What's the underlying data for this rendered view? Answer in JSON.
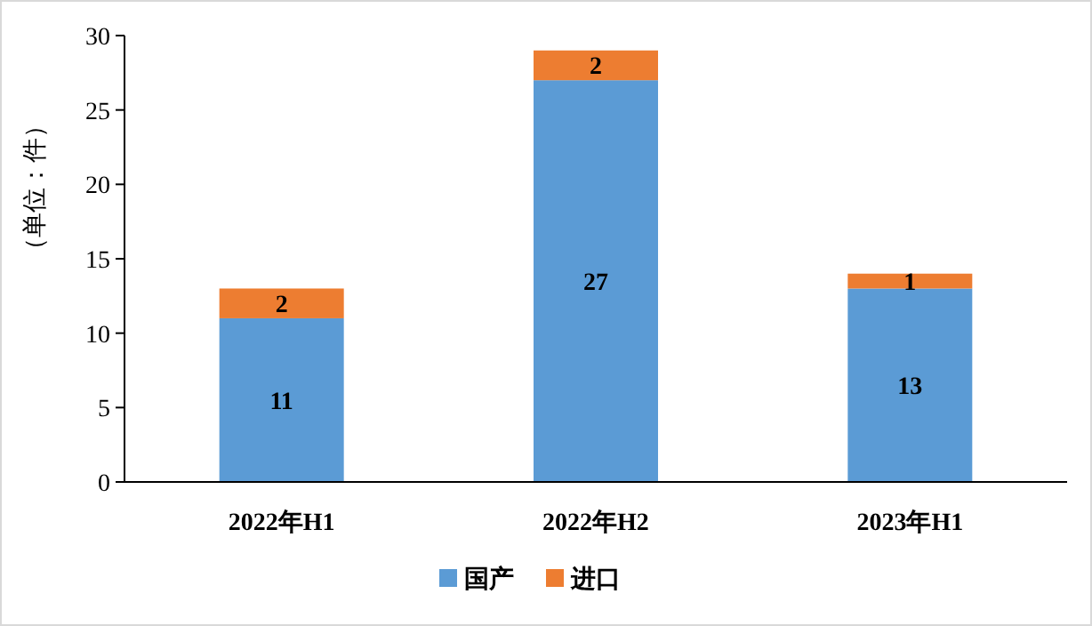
{
  "chart_data": {
    "type": "bar",
    "stacked": true,
    "ylabel": "（单位：件）",
    "categories": [
      "2022年H1",
      "2022年H2",
      "2023年H1"
    ],
    "series": [
      {
        "name": "国产",
        "color": "#5b9bd5",
        "values": [
          11,
          27,
          13
        ]
      },
      {
        "name": "进口",
        "color": "#ed7d31",
        "values": [
          2,
          2,
          1
        ]
      }
    ],
    "ylim": [
      0,
      30
    ],
    "yticks": [
      0,
      5,
      10,
      15,
      20,
      25,
      30
    ],
    "data_labels": true,
    "grid": false,
    "legend": "bottom"
  }
}
